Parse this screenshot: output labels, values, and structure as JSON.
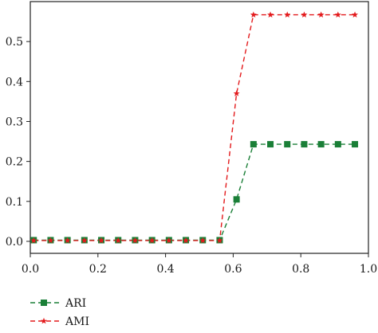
{
  "chart_data": {
    "type": "line",
    "title": "",
    "xlabel": "",
    "ylabel": "",
    "xlim": [
      0.0,
      1.0
    ],
    "ylim": [
      -0.03,
      0.6
    ],
    "x_ticks": [
      "0.0",
      "0.2",
      "0.4",
      "0.6",
      "0.8",
      "1.0"
    ],
    "y_ticks": [
      "0.0",
      "0.1",
      "0.2",
      "0.3",
      "0.4",
      "0.5"
    ],
    "x_tick_values": [
      0.0,
      0.2,
      0.4,
      0.6,
      0.8,
      1.0
    ],
    "y_tick_values": [
      0.0,
      0.1,
      0.2,
      0.3,
      0.4,
      0.5
    ],
    "grid": false,
    "legend_position": "bottom-left",
    "series": [
      {
        "name": "ARI",
        "marker": "square",
        "color": "#1a7f37",
        "dash": "dashed",
        "x": [
          0.01,
          0.06,
          0.11,
          0.16,
          0.21,
          0.26,
          0.31,
          0.36,
          0.41,
          0.46,
          0.51,
          0.56,
          0.61,
          0.66,
          0.71,
          0.76,
          0.81,
          0.86,
          0.91,
          0.96
        ],
        "y": [
          0.003,
          0.003,
          0.003,
          0.003,
          0.003,
          0.003,
          0.003,
          0.003,
          0.003,
          0.003,
          0.003,
          0.003,
          0.105,
          0.243,
          0.243,
          0.243,
          0.243,
          0.243,
          0.243,
          0.243
        ]
      },
      {
        "name": "AMI",
        "marker": "star",
        "color": "#e31a1c",
        "dash": "dashed",
        "x": [
          0.01,
          0.06,
          0.11,
          0.16,
          0.21,
          0.26,
          0.31,
          0.36,
          0.41,
          0.46,
          0.51,
          0.56,
          0.61,
          0.66,
          0.71,
          0.76,
          0.81,
          0.86,
          0.91,
          0.96
        ],
        "y": [
          0.002,
          0.002,
          0.002,
          0.002,
          0.002,
          0.002,
          0.002,
          0.002,
          0.002,
          0.002,
          0.002,
          0.002,
          0.37,
          0.567,
          0.567,
          0.567,
          0.567,
          0.567,
          0.567,
          0.567
        ]
      }
    ]
  }
}
